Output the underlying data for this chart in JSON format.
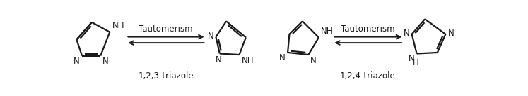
{
  "bg_color": "#ffffff",
  "line_color": "#1a1a1a",
  "lw": 1.6,
  "font_size": 8.5,
  "figsize": [
    7.47,
    1.37
  ],
  "dpi": 100,
  "tautomerism_label": "Tautomerism",
  "label_123": "1,2,3-triazole",
  "label_124": "1,2,4-triazole"
}
